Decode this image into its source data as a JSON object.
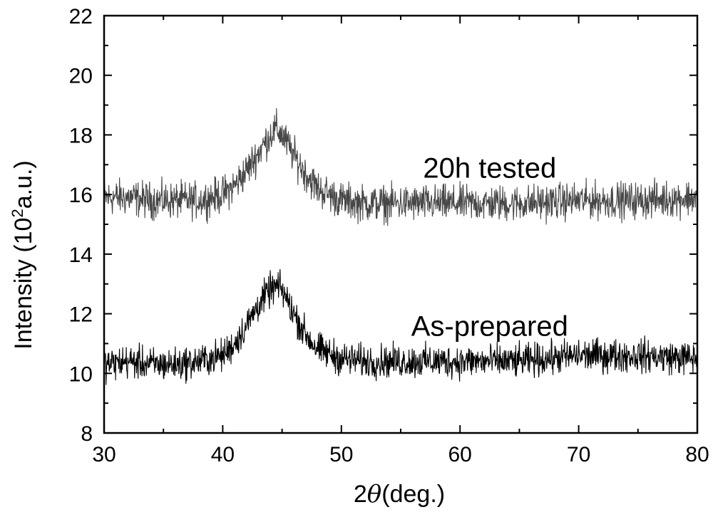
{
  "chart_data": {
    "type": "line",
    "title": "",
    "xlabel_prefix": "2",
    "xlabel_symbol": "θ",
    "xlabel_suffix": "(deg.)",
    "ylabel_main": "Intensity (10",
    "ylabel_sup": "2",
    "ylabel_end": "a.u.)",
    "xlim": [
      30,
      80
    ],
    "ylim": [
      8,
      22
    ],
    "x_major_ticks": [
      30,
      40,
      50,
      60,
      70,
      80
    ],
    "y_major_ticks": [
      8,
      10,
      12,
      14,
      16,
      18,
      20,
      22
    ],
    "x_minor_step": 5,
    "y_minor_step": 1,
    "grid": false,
    "legend": "none",
    "annotations": [
      {
        "text": "20h tested",
        "x": 62.5,
        "y": 16.9
      },
      {
        "text": "As-prepared",
        "x": 62.5,
        "y": 11.6
      }
    ],
    "series": [
      {
        "color": "#474747",
        "x": [
          30,
          32,
          34,
          36,
          38,
          40,
          41,
          42,
          43,
          44,
          44.5,
          45,
          46,
          47,
          48,
          50,
          52,
          55,
          60,
          65,
          70,
          75,
          80
        ],
        "y": [
          15.9,
          15.9,
          15.8,
          15.8,
          15.8,
          16.0,
          16.3,
          16.8,
          17.4,
          18.0,
          18.2,
          18.0,
          17.3,
          16.7,
          16.2,
          15.8,
          15.7,
          15.7,
          15.7,
          15.7,
          15.8,
          15.8,
          15.9
        ],
        "noise": 0.6
      },
      {
        "color": "#000000",
        "x": [
          30,
          32,
          34,
          36,
          38,
          40,
          41,
          42,
          43,
          44,
          44.5,
          45,
          46,
          47,
          48,
          50,
          52,
          55,
          60,
          65,
          70,
          75,
          80
        ],
        "y": [
          10.3,
          10.4,
          10.3,
          10.3,
          10.4,
          10.6,
          11.0,
          11.6,
          12.3,
          12.8,
          12.9,
          12.8,
          12.0,
          11.3,
          10.8,
          10.5,
          10.4,
          10.4,
          10.4,
          10.4,
          10.6,
          10.6,
          10.5
        ],
        "noise": 0.55
      }
    ]
  }
}
